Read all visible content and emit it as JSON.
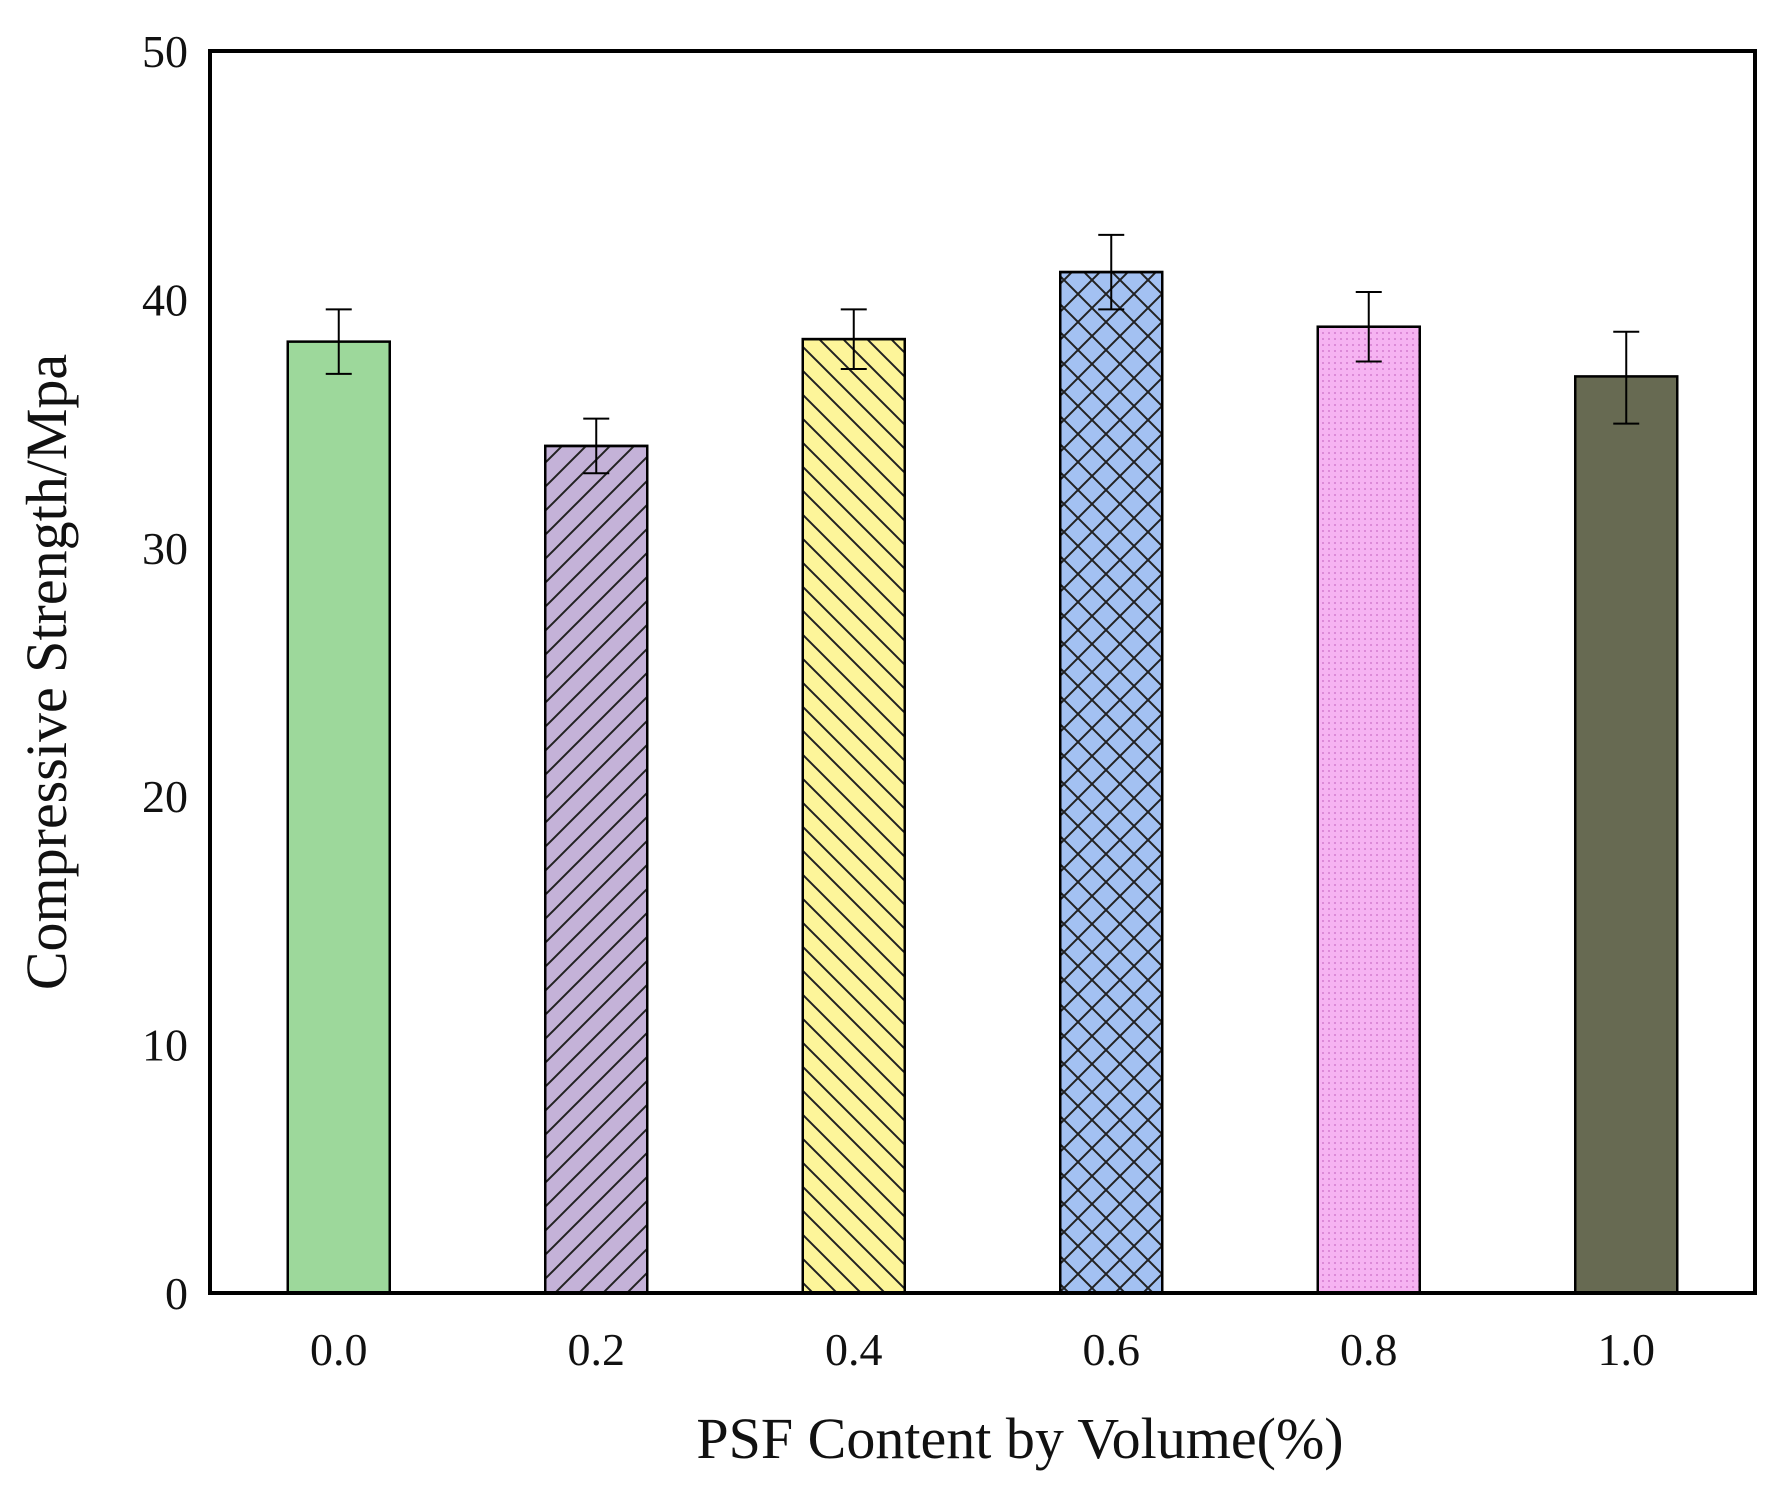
{
  "chart_data": {
    "type": "bar",
    "title": "",
    "xlabel": "PSF Content by Volume(%)",
    "ylabel": "Compressive Strength/Mpa",
    "categories": [
      "0.0",
      "0.2",
      "0.4",
      "0.6",
      "0.8",
      "1.0"
    ],
    "values": [
      38.3,
      34.1,
      38.4,
      41.1,
      38.9,
      36.9
    ],
    "error_low": [
      37.0,
      33.0,
      37.2,
      39.6,
      37.5,
      35.0
    ],
    "error_high": [
      39.6,
      35.2,
      39.6,
      42.6,
      40.3,
      38.7
    ],
    "bar_colors": [
      "#9dd89b",
      "#c4b2d8",
      "#fdf59a",
      "#a3c1f2",
      "#f6b3f2",
      "#676a52"
    ],
    "patterns": [
      "none",
      "diagonal-up",
      "diagonal-down",
      "crosshatch",
      "dots",
      "none"
    ],
    "ylim": [
      0,
      50
    ],
    "yticks": [
      "0",
      "10",
      "20",
      "30",
      "40",
      "50"
    ],
    "grid": false,
    "legend": "none"
  }
}
